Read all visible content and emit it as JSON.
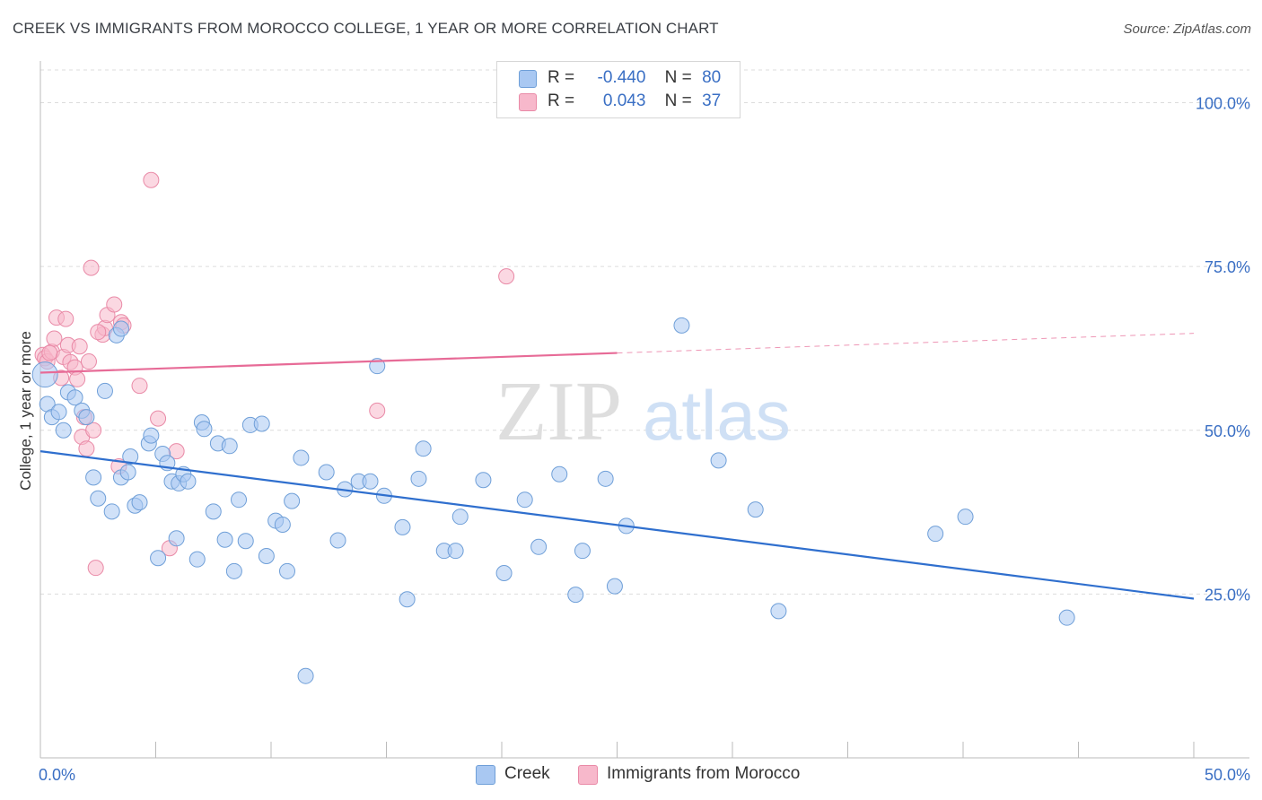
{
  "title": "CREEK VS IMMIGRANTS FROM MOROCCO COLLEGE, 1 YEAR OR MORE CORRELATION CHART",
  "source": "Source: ZipAtlas.com",
  "watermark": {
    "zip": "ZIP",
    "atlas": "atlas"
  },
  "colors": {
    "creek_fill": "#a9c8f2",
    "creek_stroke": "#6f9fd8",
    "creek_line": "#2f6fce",
    "morocco_fill": "#f7b8cb",
    "morocco_stroke": "#e98aa7",
    "morocco_line": "#e76b97",
    "axis_label": "#3a6fc4",
    "grid": "#dcdcdc"
  },
  "legend": {
    "rows": [
      {
        "r_label": "R =",
        "r_value": "-0.440",
        "n_label": "N =",
        "n_value": "80"
      },
      {
        "r_label": "R =",
        "r_value": "0.043",
        "n_label": "N =",
        "n_value": "37"
      }
    ]
  },
  "bottom_legend": {
    "creek": "Creek",
    "morocco": "Immigrants from Morocco"
  },
  "chart_data": {
    "type": "scatter",
    "ylabel": "College, 1 year or more",
    "xlim": [
      0,
      50
    ],
    "ylim": [
      0,
      105
    ],
    "x_tick_labels": [
      "0.0%",
      "50.0%"
    ],
    "y_tick_labels": [
      "25.0%",
      "50.0%",
      "75.0%",
      "100.0%"
    ],
    "y_ticks": [
      25,
      50,
      75,
      100
    ],
    "grid": "horizontal dashed",
    "series": [
      {
        "name": "Creek",
        "r": -0.44,
        "n": 80,
        "trend": {
          "x0": 0,
          "y0": 46.8,
          "x1": 50,
          "y1": 24.3
        },
        "points": [
          [
            0.2,
            58.5
          ],
          [
            0.3,
            54
          ],
          [
            0.5,
            52
          ],
          [
            0.8,
            52.8
          ],
          [
            1.0,
            50
          ],
          [
            1.2,
            55.8
          ],
          [
            1.5,
            55
          ],
          [
            1.8,
            53
          ],
          [
            2.0,
            52
          ],
          [
            2.3,
            42.8
          ],
          [
            2.5,
            39.6
          ],
          [
            2.8,
            56
          ],
          [
            3.1,
            37.6
          ],
          [
            3.3,
            64.5
          ],
          [
            3.5,
            42.8
          ],
          [
            3.8,
            43.6
          ],
          [
            3.9,
            46
          ],
          [
            4.1,
            38.5
          ],
          [
            4.3,
            39
          ],
          [
            4.7,
            48
          ],
          [
            4.8,
            49.2
          ],
          [
            5.1,
            30.5
          ],
          [
            5.3,
            46.4
          ],
          [
            5.5,
            45
          ],
          [
            5.7,
            42.2
          ],
          [
            5.9,
            33.5
          ],
          [
            6.0,
            41.9
          ],
          [
            6.2,
            43.3
          ],
          [
            6.4,
            42.2
          ],
          [
            6.8,
            30.3
          ],
          [
            7.0,
            51.2
          ],
          [
            7.1,
            50.2
          ],
          [
            7.5,
            37.6
          ],
          [
            7.7,
            48
          ],
          [
            8.0,
            33.3
          ],
          [
            8.2,
            47.6
          ],
          [
            8.4,
            28.5
          ],
          [
            8.6,
            39.4
          ],
          [
            8.9,
            33.1
          ],
          [
            9.1,
            50.8
          ],
          [
            9.6,
            51
          ],
          [
            9.8,
            30.8
          ],
          [
            10.2,
            36.2
          ],
          [
            10.5,
            35.6
          ],
          [
            10.7,
            28.5
          ],
          [
            10.9,
            39.2
          ],
          [
            11.3,
            45.8
          ],
          [
            11.5,
            12.5
          ],
          [
            12.4,
            43.6
          ],
          [
            12.9,
            33.2
          ],
          [
            13.2,
            41
          ],
          [
            13.8,
            42.2
          ],
          [
            14.3,
            42.2
          ],
          [
            14.6,
            59.8
          ],
          [
            14.9,
            40
          ],
          [
            15.7,
            35.2
          ],
          [
            15.9,
            24.2
          ],
          [
            16.4,
            42.6
          ],
          [
            16.6,
            47.2
          ],
          [
            17.5,
            31.6
          ],
          [
            18.0,
            31.6
          ],
          [
            18.2,
            36.8
          ],
          [
            19.2,
            42.4
          ],
          [
            20.1,
            28.2
          ],
          [
            21.0,
            39.4
          ],
          [
            21.6,
            32.2
          ],
          [
            22.5,
            43.3
          ],
          [
            23.2,
            24.9
          ],
          [
            23.5,
            31.6
          ],
          [
            24.5,
            42.6
          ],
          [
            24.9,
            26.2
          ],
          [
            25.4,
            35.4
          ],
          [
            27.8,
            66
          ],
          [
            29.4,
            45.4
          ],
          [
            31.0,
            37.9
          ],
          [
            32.0,
            22.4
          ],
          [
            38.8,
            34.2
          ],
          [
            40.1,
            36.8
          ],
          [
            44.5,
            21.4
          ],
          [
            3.5,
            65.5
          ]
        ]
      },
      {
        "name": "Immigrants from Morocco",
        "r": 0.043,
        "n": 37,
        "trend": {
          "x0": 0,
          "y0": 58.8,
          "x1": 25,
          "y1": 61.8,
          "dash_to_x": 50,
          "dash_to_y": 64.8
        },
        "points": [
          [
            0.1,
            61.5
          ],
          [
            0.2,
            61
          ],
          [
            0.3,
            60.5
          ],
          [
            0.5,
            62
          ],
          [
            0.6,
            64
          ],
          [
            0.7,
            67.2
          ],
          [
            0.9,
            58
          ],
          [
            1.0,
            61.2
          ],
          [
            1.1,
            67
          ],
          [
            1.2,
            63
          ],
          [
            1.3,
            60.4
          ],
          [
            1.5,
            59.6
          ],
          [
            1.6,
            57.8
          ],
          [
            1.7,
            62.8
          ],
          [
            1.9,
            52
          ],
          [
            1.8,
            49
          ],
          [
            2.0,
            47.2
          ],
          [
            2.1,
            60.5
          ],
          [
            2.2,
            74.8
          ],
          [
            2.3,
            50
          ],
          [
            2.4,
            29
          ],
          [
            2.7,
            64.6
          ],
          [
            2.8,
            65.6
          ],
          [
            2.9,
            67.6
          ],
          [
            3.2,
            69.2
          ],
          [
            3.5,
            66.5
          ],
          [
            3.6,
            66
          ],
          [
            3.4,
            44.5
          ],
          [
            4.3,
            56.8
          ],
          [
            4.8,
            88.2
          ],
          [
            5.1,
            51.8
          ],
          [
            5.6,
            32
          ],
          [
            5.9,
            46.8
          ],
          [
            14.6,
            53
          ],
          [
            20.2,
            73.5
          ],
          [
            0.4,
            61.8
          ],
          [
            2.5,
            65
          ]
        ]
      }
    ]
  }
}
